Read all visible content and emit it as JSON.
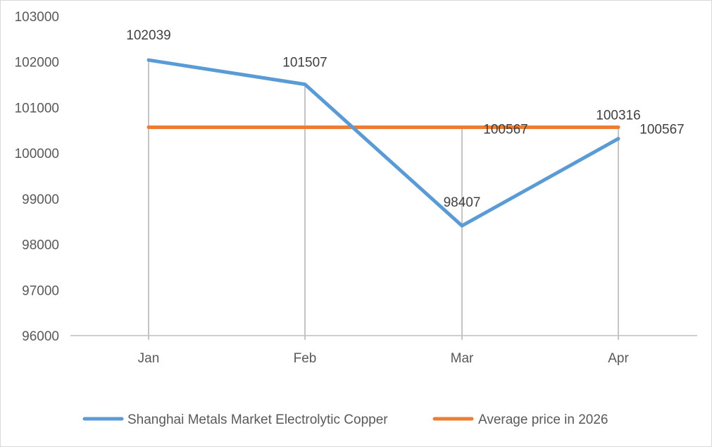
{
  "chart_data": {
    "type": "line",
    "categories": [
      "Jan",
      "Feb",
      "Mar",
      "Apr"
    ],
    "ylim": [
      96000,
      103000
    ],
    "yticks": [
      96000,
      97000,
      98000,
      99000,
      100000,
      101000,
      102000,
      103000
    ],
    "ytick_labels": [
      "96000",
      "97000",
      "98000",
      "99000",
      "100000",
      "101000",
      "102000",
      "103000"
    ],
    "grid": false,
    "drop_lines": true,
    "legend_position": "bottom",
    "series": [
      {
        "name": "Shanghai Metals Market Electrolytic Copper",
        "values": [
          102039,
          101507,
          98407,
          100316
        ],
        "labels": [
          "102039",
          "101507",
          "98407",
          "100316"
        ],
        "color": "#5b9bd5"
      },
      {
        "name": "Average price in 2026",
        "values": [
          100567,
          100567,
          100567,
          100567
        ],
        "labels": [
          "",
          "",
          "100567",
          "100567"
        ],
        "color": "#ed7d31"
      }
    ]
  }
}
